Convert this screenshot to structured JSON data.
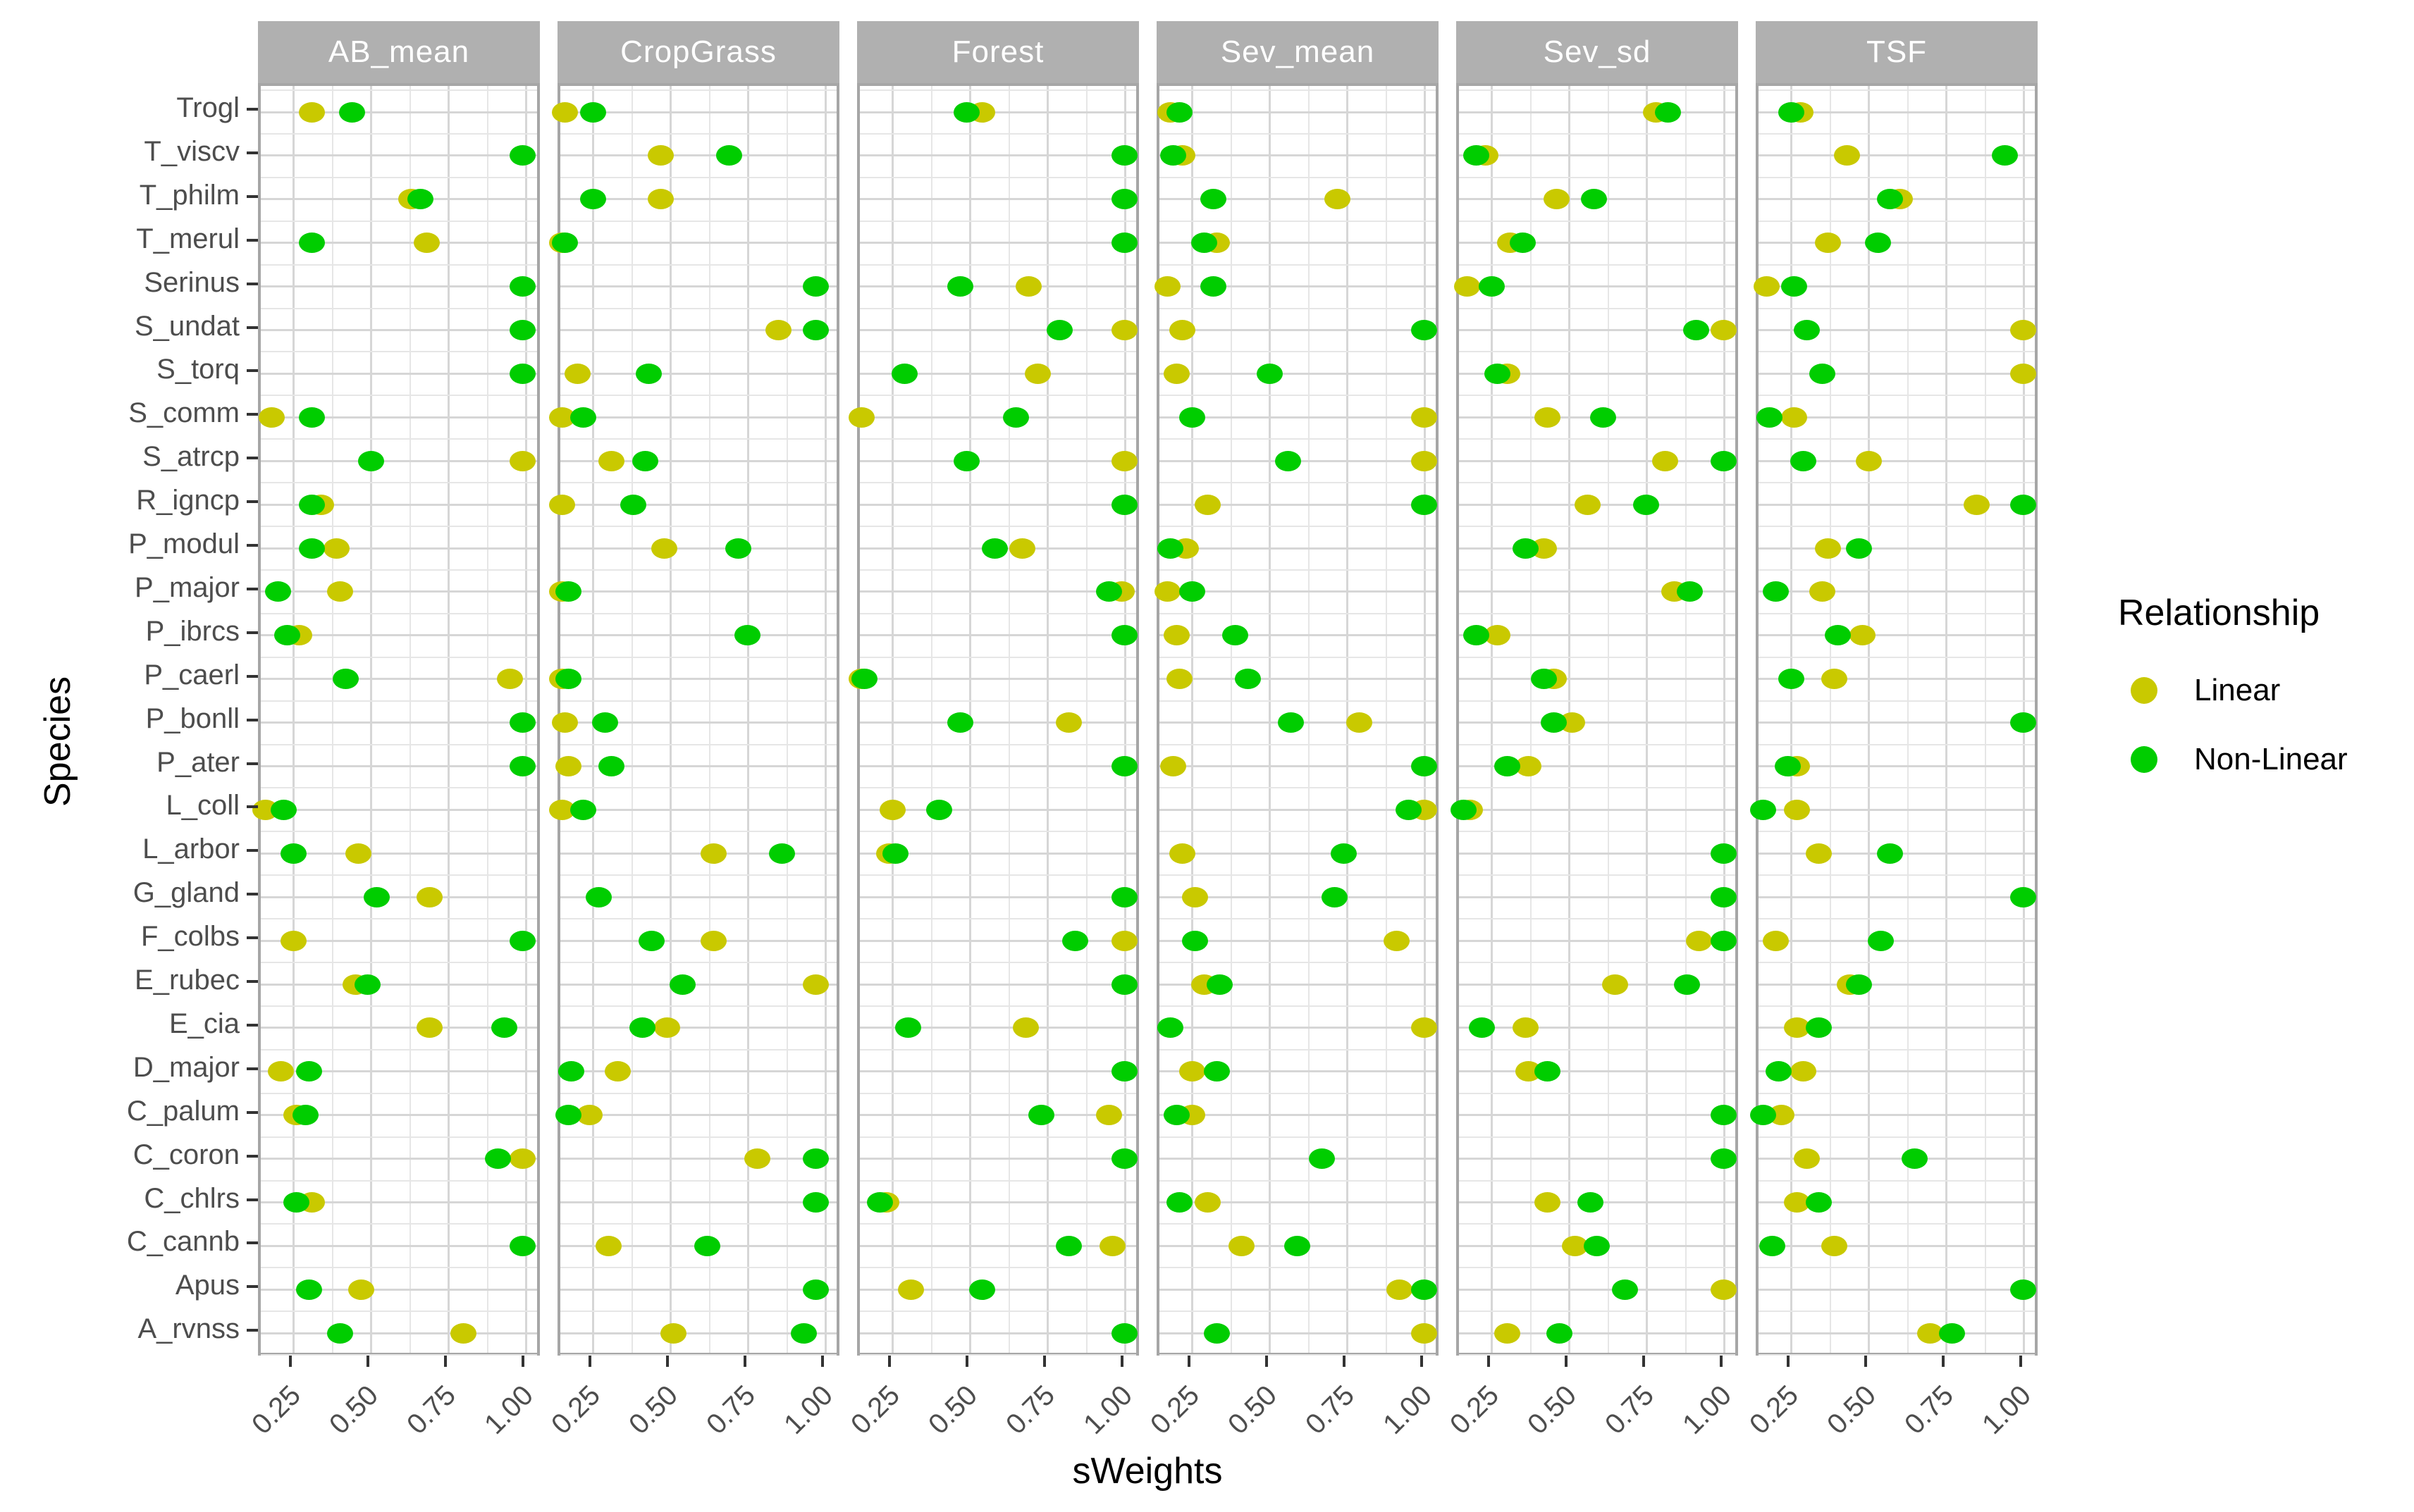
{
  "colors": {
    "linear": "#C9C900",
    "nonlinear": "#00CD00",
    "strip_bg": "#B0B0B0",
    "strip_text": "#FFFFFF",
    "axis_text": "#4D4D4D",
    "axis_title": "#000000",
    "grid_major": "#D6D6D6",
    "grid_minor": "#E6E6E6",
    "panel_border": "#A6A6A6"
  },
  "legend": {
    "title": "Relationship",
    "entries": [
      {
        "label": "Linear",
        "color": "#C9C900"
      },
      {
        "label": "Non-Linear",
        "color": "#00CD00"
      }
    ]
  },
  "chart_data": {
    "type": "scatter",
    "title": "",
    "xlabel": "sWeights",
    "ylabel": "Species",
    "facets": [
      "AB_mean",
      "CropGrass",
      "Forest",
      "Sev_mean",
      "Sev_sd",
      "TSF"
    ],
    "x_ticks": [
      0.25,
      0.5,
      0.75,
      1.0
    ],
    "x_tick_labels": [
      "0.25",
      "0.50",
      "0.75",
      "1.00"
    ],
    "x_range_shown": [
      0.145,
      1.055
    ],
    "grid": true,
    "legend_position": "right",
    "species_top_to_bottom": [
      "Trogl",
      "T_viscv",
      "T_philm",
      "T_merul",
      "Serinus",
      "S_undat",
      "S_torq",
      "S_comm",
      "S_atrcp",
      "R_igncp",
      "P_modul",
      "P_major",
      "P_ibrcs",
      "P_caerl",
      "P_bonll",
      "P_ater",
      "L_coll",
      "L_arbor",
      "G_gland",
      "F_colbs",
      "E_rubec",
      "E_cia",
      "D_major",
      "C_palum",
      "C_coron",
      "C_chlrs",
      "C_cannb",
      "Apus",
      "A_rvnss"
    ],
    "series": [
      {
        "facet": "AB_mean",
        "linear": [
          0.31,
          null,
          0.63,
          0.68,
          null,
          null,
          null,
          0.18,
          0.99,
          0.34,
          0.39,
          0.4,
          0.27,
          0.95,
          null,
          null,
          0.16,
          0.46,
          0.69,
          0.25,
          0.45,
          0.69,
          0.21,
          0.26,
          0.99,
          0.31,
          null,
          0.47,
          0.8
        ],
        "nonlinear": [
          0.44,
          0.99,
          0.66,
          0.31,
          0.99,
          0.99,
          0.99,
          0.31,
          0.5,
          0.31,
          0.31,
          0.2,
          0.23,
          0.42,
          0.99,
          0.99,
          0.22,
          0.25,
          0.52,
          0.99,
          0.49,
          0.93,
          0.3,
          0.29,
          0.91,
          0.26,
          0.99,
          0.3,
          0.4
        ]
      },
      {
        "facet": "CropGrass",
        "linear": [
          0.16,
          0.47,
          0.47,
          0.14,
          null,
          0.85,
          0.2,
          0.14,
          0.31,
          0.14,
          0.48,
          0.14,
          null,
          0.14,
          0.16,
          0.17,
          0.15,
          0.64,
          null,
          0.64,
          0.97,
          0.49,
          0.33,
          0.24,
          0.78,
          null,
          0.3,
          null,
          0.51
        ],
        "nonlinear": [
          0.25,
          0.69,
          0.25,
          0.16,
          0.97,
          0.97,
          0.43,
          0.22,
          0.42,
          0.38,
          0.72,
          0.17,
          0.75,
          0.17,
          0.29,
          0.31,
          0.22,
          0.86,
          0.27,
          0.44,
          0.54,
          0.41,
          0.18,
          0.17,
          0.97,
          0.97,
          0.62,
          0.97,
          0.93
        ]
      },
      {
        "facet": "Forest",
        "linear": [
          0.54,
          null,
          null,
          null,
          0.69,
          1.0,
          0.72,
          0.15,
          1.0,
          null,
          0.67,
          0.99,
          null,
          0.13,
          0.82,
          null,
          0.25,
          0.24,
          null,
          1.0,
          null,
          0.68,
          null,
          0.95,
          null,
          0.23,
          0.96,
          0.31,
          null
        ],
        "nonlinear": [
          0.49,
          1.0,
          1.0,
          1.0,
          0.47,
          0.79,
          0.29,
          0.65,
          0.49,
          1.0,
          0.58,
          0.95,
          1.0,
          0.16,
          0.47,
          1.0,
          0.4,
          0.26,
          1.0,
          0.84,
          1.0,
          0.3,
          1.0,
          0.73,
          1.0,
          0.21,
          0.82,
          0.54,
          1.0
        ]
      },
      {
        "facet": "Sev_mean",
        "linear": [
          0.18,
          0.22,
          0.72,
          0.33,
          0.17,
          0.22,
          0.2,
          1.0,
          1.0,
          0.3,
          0.23,
          0.17,
          0.2,
          0.21,
          0.79,
          0.19,
          1.0,
          0.22,
          0.26,
          0.91,
          0.29,
          1.0,
          0.25,
          0.25,
          null,
          0.3,
          0.41,
          0.92,
          1.0
        ],
        "nonlinear": [
          0.21,
          0.19,
          0.32,
          0.29,
          0.32,
          1.0,
          0.5,
          0.25,
          0.56,
          1.0,
          0.18,
          0.25,
          0.39,
          0.43,
          0.57,
          1.0,
          0.95,
          0.74,
          0.71,
          0.26,
          0.34,
          0.18,
          0.33,
          0.2,
          0.67,
          0.21,
          0.59,
          1.0,
          0.33
        ]
      },
      {
        "facet": "Sev_sd",
        "linear": [
          0.78,
          0.23,
          0.46,
          0.31,
          0.17,
          1.0,
          0.3,
          0.43,
          0.81,
          0.56,
          0.42,
          0.84,
          0.27,
          0.45,
          0.51,
          0.37,
          0.18,
          null,
          null,
          0.92,
          0.65,
          0.36,
          0.37,
          null,
          null,
          0.43,
          0.52,
          1.0,
          0.3
        ],
        "nonlinear": [
          0.82,
          0.2,
          0.58,
          0.35,
          0.25,
          0.91,
          0.27,
          0.61,
          1.0,
          0.75,
          0.36,
          0.89,
          0.2,
          0.42,
          0.45,
          0.3,
          0.16,
          1.0,
          1.0,
          1.0,
          0.88,
          0.22,
          0.43,
          1.0,
          1.0,
          0.57,
          0.59,
          0.68,
          0.47
        ]
      },
      {
        "facet": "TSF",
        "linear": [
          0.28,
          0.43,
          0.6,
          0.37,
          0.17,
          1.0,
          1.0,
          0.26,
          0.5,
          0.85,
          0.37,
          0.35,
          0.48,
          0.39,
          null,
          0.27,
          0.27,
          0.34,
          null,
          0.2,
          0.44,
          0.27,
          0.29,
          0.22,
          0.3,
          0.27,
          0.39,
          null,
          0.7
        ],
        "nonlinear": [
          0.25,
          0.94,
          0.57,
          0.53,
          0.26,
          0.3,
          0.35,
          0.18,
          0.29,
          1.0,
          0.47,
          0.2,
          0.4,
          0.25,
          1.0,
          0.24,
          0.16,
          0.57,
          1.0,
          0.54,
          0.47,
          0.34,
          0.21,
          0.16,
          0.65,
          0.34,
          0.19,
          1.0,
          0.77
        ]
      }
    ]
  }
}
